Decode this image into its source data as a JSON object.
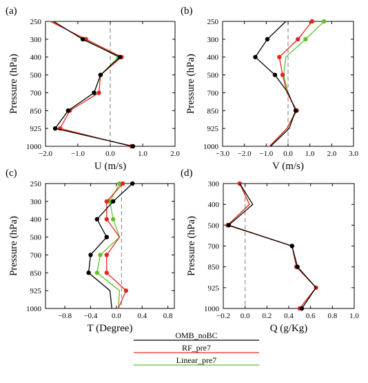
{
  "legend": [
    {
      "name": "OMB_noBC",
      "color": "#000000"
    },
    {
      "name": "RF_pre7",
      "color": "#e8231b"
    },
    {
      "name": "Linear_pre7",
      "color": "#62c02a"
    }
  ],
  "chart_data": [
    {
      "type": "line",
      "tag": "(a)",
      "title": "",
      "xlabel": "U (m/s)",
      "ylabel": "Pressure (hPa)",
      "xlim": [
        -2.0,
        2.0
      ],
      "xticks": [
        "−2.0",
        "−1.0",
        "0.0",
        "1.0",
        "2.0"
      ],
      "xtick_values": [
        -2.0,
        -1.0,
        0.0,
        1.0,
        2.0
      ],
      "y_categories": [
        "250",
        "300",
        "400",
        "500",
        "700",
        "850",
        "925",
        "1000"
      ],
      "zero_line": 0,
      "series": [
        {
          "name": "OMB_noBC",
          "values": [
            -1.75,
            -0.85,
            0.3,
            -0.3,
            -0.5,
            -1.3,
            -1.7,
            0.7
          ],
          "markers": [
            false,
            true,
            true,
            true,
            true,
            true,
            true,
            true
          ]
        },
        {
          "name": "RF_pre7",
          "values": [
            -1.85,
            -0.75,
            0.35,
            -0.3,
            -0.35,
            -1.25,
            -1.55,
            0.65
          ],
          "markers": [
            false,
            true,
            true,
            false,
            true,
            true,
            true,
            true
          ]
        },
        {
          "name": "Linear_pre7",
          "values": [
            -1.8,
            -0.8,
            0.25,
            -0.3,
            -0.5,
            -1.3,
            -1.7,
            0.7
          ],
          "markers": [
            false,
            true,
            true,
            true,
            true,
            true,
            true,
            true
          ]
        }
      ]
    },
    {
      "type": "line",
      "tag": "(b)",
      "title": "",
      "xlabel": "V (m/s)",
      "ylabel": "Pressure (hPa)",
      "xlim": [
        -3.0,
        3.0
      ],
      "xticks": [
        "−3.0",
        "−2.0",
        "−1.0",
        "0.0",
        "1.0",
        "2.0",
        "3.0"
      ],
      "xtick_values": [
        -3.0,
        -2.0,
        -1.0,
        0.0,
        1.0,
        2.0,
        3.0
      ],
      "y_categories": [
        "250",
        "300",
        "400",
        "500",
        "700",
        "850",
        "925",
        "1000"
      ],
      "zero_line": 0,
      "series": [
        {
          "name": "OMB_noBC",
          "values": [
            -0.1,
            -0.95,
            -1.5,
            -0.6,
            0.0,
            0.35,
            0.05,
            -0.8
          ],
          "markers": [
            false,
            true,
            true,
            true,
            false,
            true,
            false,
            false
          ]
        },
        {
          "name": "RF_pre7",
          "values": [
            1.1,
            0.45,
            -0.4,
            -0.25,
            -0.05,
            0.4,
            -0.05,
            -0.85
          ],
          "markers": [
            true,
            true,
            true,
            true,
            false,
            true,
            false,
            false
          ]
        },
        {
          "name": "Linear_pre7",
          "values": [
            1.65,
            0.8,
            -0.1,
            -0.2,
            0.0,
            0.35,
            -0.05,
            -0.85
          ],
          "markers": [
            true,
            true,
            false,
            false,
            false,
            true,
            false,
            false
          ]
        }
      ]
    },
    {
      "type": "line",
      "tag": "(c)",
      "title": "",
      "xlabel": "T (Degree)",
      "ylabel": "Pressure (hPa)",
      "xlim": [
        -1.1,
        0.9
      ],
      "xticks": [
        "−0.8",
        "−0.4",
        "0.0",
        "0.4",
        "0.8"
      ],
      "xtick_values": [
        -0.8,
        -0.4,
        0.0,
        0.4,
        0.8
      ],
      "y_categories": [
        "250",
        "300",
        "400",
        "500",
        "700",
        "850",
        "925",
        "1000"
      ],
      "zero_line": 0.08,
      "series": [
        {
          "name": "OMB_noBC",
          "values": [
            0.25,
            -0.05,
            -0.3,
            -0.15,
            -0.4,
            -0.43,
            -0.1,
            -0.07
          ],
          "markers": [
            true,
            true,
            true,
            true,
            true,
            true,
            false,
            false
          ]
        },
        {
          "name": "RF_pre7",
          "values": [
            0.1,
            -0.15,
            -0.15,
            0.05,
            -0.15,
            -0.15,
            0.15,
            0.03
          ],
          "markers": [
            true,
            true,
            true,
            false,
            true,
            true,
            true,
            false
          ]
        },
        {
          "name": "Linear_pre7",
          "values": [
            0.05,
            -0.1,
            -0.05,
            0.05,
            -0.25,
            -0.3,
            0.05,
            0.03
          ],
          "markers": [
            true,
            true,
            true,
            false,
            true,
            true,
            false,
            false
          ]
        }
      ]
    },
    {
      "type": "line",
      "tag": "(d)",
      "title": "",
      "xlabel": "Q (g/Kg)",
      "ylabel": "Pressure (hPa)",
      "xlim": [
        -0.2,
        1.0
      ],
      "xticks": [
        "−0.2",
        "0.0",
        "0.2",
        "0.4",
        "0.6",
        "0.8",
        "1.0"
      ],
      "xtick_values": [
        -0.2,
        0.0,
        0.2,
        0.4,
        0.6,
        0.8,
        1.0
      ],
      "y_categories": [
        "300",
        "400",
        "500",
        "700",
        "850",
        "925",
        "1000"
      ],
      "zero_line": 0,
      "series": [
        {
          "name": "OMB_noBC",
          "values": [
            -0.05,
            0.07,
            -0.15,
            0.43,
            0.48,
            0.65,
            0.52
          ],
          "markers": [
            false,
            false,
            true,
            true,
            true,
            false,
            true
          ]
        },
        {
          "name": "RF_pre7",
          "values": [
            -0.05,
            0.04,
            -0.16,
            0.43,
            0.47,
            0.65,
            0.5
          ],
          "markers": [
            true,
            false,
            true,
            true,
            true,
            true,
            true
          ]
        },
        {
          "name": "Linear_pre7",
          "values": [
            -0.05,
            0.04,
            -0.16,
            0.43,
            0.47,
            0.65,
            0.5
          ],
          "markers": [
            true,
            false,
            true,
            true,
            true,
            false,
            false
          ]
        }
      ]
    }
  ]
}
